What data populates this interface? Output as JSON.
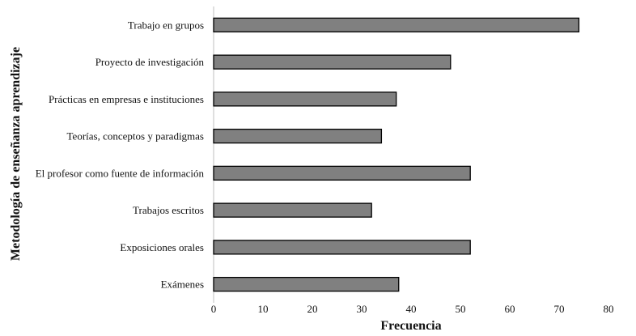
{
  "chart_data": {
    "type": "bar",
    "orientation": "horizontal",
    "categories": [
      "Trabajo en grupos",
      "Proyecto de investigación",
      "Prácticas en empresas e instituciones",
      "Teorías, conceptos y paradigmas",
      "El profesor como fuente de información",
      "Trabajos escritos",
      "Exposiciones orales",
      "Exámenes"
    ],
    "values": [
      74,
      48,
      37,
      34,
      52,
      32,
      52,
      37.5
    ],
    "xlabel": "Frecuencia",
    "ylabel": "Metodología de enseñanza aprendizaje",
    "xlim": [
      0,
      80
    ],
    "xticks": [
      "0",
      "10",
      "20",
      "30",
      "40",
      "50",
      "60",
      "70",
      "80"
    ],
    "grid": false,
    "legend": "none",
    "colors": {
      "bar_fill": "#808080",
      "bar_stroke": "#000000",
      "axis": "#bfbfbf"
    }
  }
}
